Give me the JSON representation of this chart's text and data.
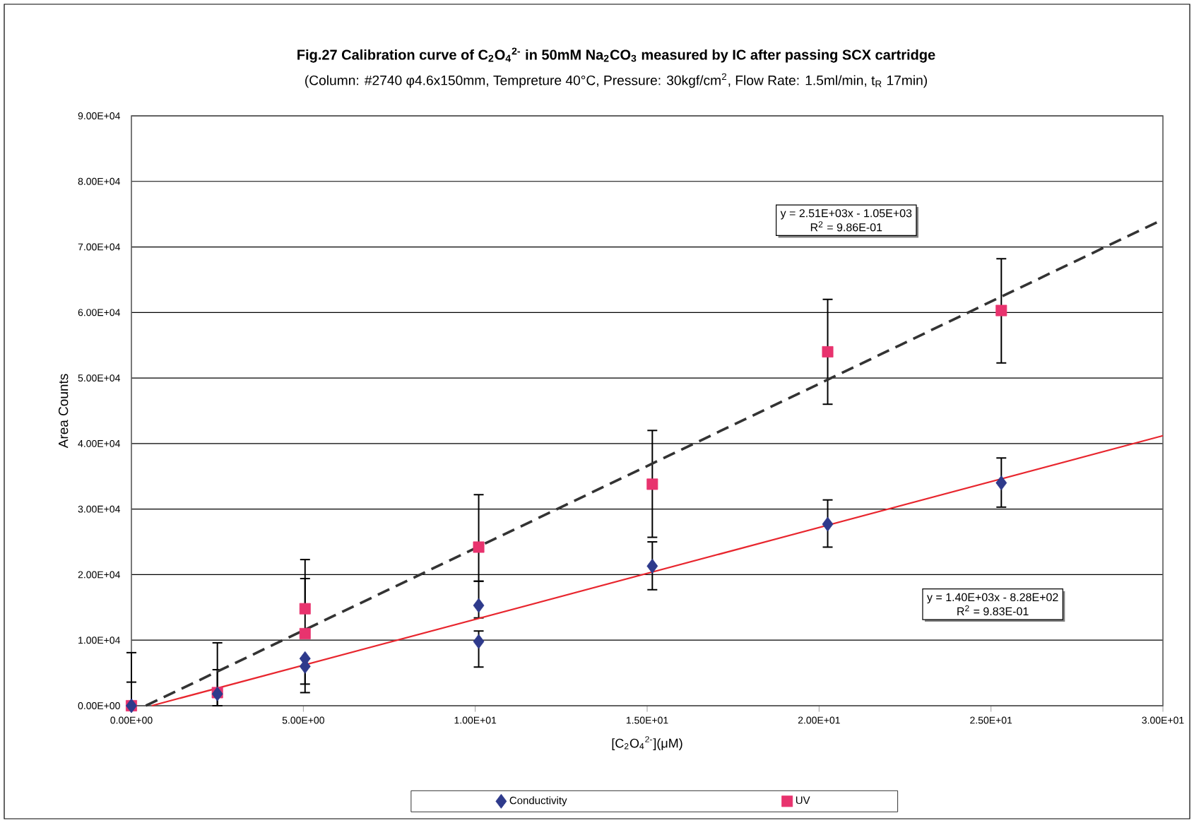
{
  "chart_data": {
    "type": "scatter",
    "title": "Fig.27 Calibration curve of C$_{2}$O$_{4}$$^{2-}$ in 50mM Na$_{2}$CO$_{3}$ measured by IC after passing SCX cartridge",
    "subtitle": "(Column: #2740 φ4.6x150mm, Tempreture 40°C,  Pressure: 30kgf/cm$^{2}$, Flow Rate: 1.5ml/min, t$_{R}$ 17min)",
    "xlabel": "[C$_{2}$O$_{4}$$^{2-}$](μM)",
    "ylabel": "Area Counts",
    "xlim": [
      0,
      30
    ],
    "ylim": [
      0,
      90000
    ],
    "xticks": [
      {
        "value": 0,
        "label": "0.00E+00"
      },
      {
        "value": 5,
        "label": "5.00E+00"
      },
      {
        "value": 10,
        "label": "1.00E+01"
      },
      {
        "value": 15,
        "label": "1.50E+01"
      },
      {
        "value": 20,
        "label": "2.00E+01"
      },
      {
        "value": 25,
        "label": "2.50E+01"
      },
      {
        "value": 30,
        "label": "3.00E+01"
      }
    ],
    "yticks": [
      {
        "value": 0,
        "label": "0.00E+00"
      },
      {
        "value": 10000,
        "label": "1.00E+04"
      },
      {
        "value": 20000,
        "label": "2.00E+04"
      },
      {
        "value": 30000,
        "label": "3.00E+04"
      },
      {
        "value": 40000,
        "label": "4.00E+04"
      },
      {
        "value": 50000,
        "label": "5.00E+04"
      },
      {
        "value": 60000,
        "label": "6.00E+04"
      },
      {
        "value": 70000,
        "label": "7.00E+04"
      },
      {
        "value": 80000,
        "label": "8.00E+04"
      },
      {
        "value": 90000,
        "label": "9.00E+04"
      }
    ],
    "grid": "y",
    "legend": "bottom",
    "series": [
      {
        "name": "Conductivity",
        "marker": "diamond",
        "color": "#2e3a8c",
        "x": [
          0,
          2.5,
          5.05,
          5.05,
          10.1,
          10.1,
          15.15,
          20.25,
          25.3
        ],
        "values": [
          0,
          1800,
          7200,
          6000,
          15300,
          9800,
          21300,
          27700,
          34000
        ],
        "errors": [
          [
            0,
            3600
          ],
          [
            0,
            5500
          ],
          [
            3300,
            7200
          ],
          [
            2000,
            6000
          ],
          [
            13400,
            19000
          ],
          [
            5900,
            11400
          ],
          [
            17700,
            25000
          ],
          [
            24200,
            31400
          ],
          [
            30300,
            37800
          ]
        ]
      },
      {
        "name": "UV",
        "marker": "square",
        "color": "#e8336e",
        "x": [
          0,
          2.5,
          5.05,
          5.05,
          10.1,
          15.15,
          20.25,
          25.3
        ],
        "values": [
          0,
          2000,
          14800,
          11000,
          24200,
          33800,
          54000,
          60300
        ],
        "errors": [
          [
            0,
            8100
          ],
          [
            0,
            9600
          ],
          [
            14800,
            22300
          ],
          [
            11000,
            19400
          ],
          [
            19000,
            32200
          ],
          [
            25700,
            42000
          ],
          [
            46000,
            62000
          ],
          [
            52300,
            68200
          ]
        ]
      },
      {
        "type": "line",
        "line_style": "dashed",
        "color": "#333333",
        "x": [
          0.42,
          30
        ],
        "values": [
          0,
          74200
        ]
      },
      {
        "type": "line",
        "line_style": "solid",
        "color": "#e8262e",
        "x": [
          0.59,
          30
        ],
        "values": [
          0,
          41200
        ]
      }
    ],
    "annotations": [
      "y = 2.51E+03x - 1.05E+03",
      "R$^{2}$ = 9.86E-01",
      "y = 1.40E+03x - 8.28E+02",
      "R$^{2}$ = 9.83E-01"
    ]
  }
}
